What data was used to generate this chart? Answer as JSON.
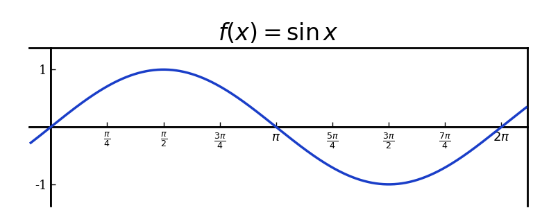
{
  "title": "$f(x) = \\sin x$",
  "line_color": "#1a3ec8",
  "line_width": 2.5,
  "bg_color": "#ffffff",
  "xlim": [
    -0.3,
    6.65
  ],
  "ylim": [
    -1.38,
    1.38
  ],
  "x_start": -0.28,
  "x_end": 6.63,
  "yticks": [
    -1,
    1
  ],
  "xtick_positions": [
    0.7853981633974483,
    1.5707963267948966,
    2.356194490192345,
    3.141592653589793,
    3.9269908169872414,
    4.71238898038469,
    5.497787143782138,
    6.283185307179586
  ],
  "xtick_labels": [
    "\\frac{\\pi}{4}",
    "\\frac{\\pi}{2}",
    "\\frac{3\\pi}{4}",
    "\\pi",
    "\\frac{5\\pi}{4}",
    "\\frac{3\\pi}{2}",
    "\\frac{7\\pi}{4}",
    "2\\pi"
  ],
  "title_fontsize": 24,
  "tick_fontsize": 13,
  "spine_linewidth": 2.0,
  "axis_linewidth": 1.2,
  "fig_width": 7.68,
  "fig_height": 3.13,
  "dpi": 100
}
